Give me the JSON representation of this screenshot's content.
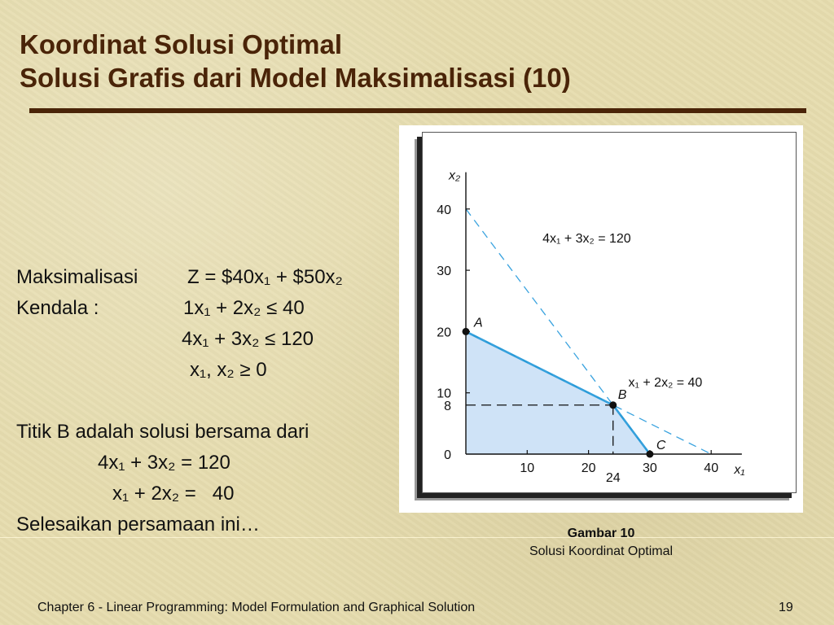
{
  "slide": {
    "title_line1": "Koordinat Solusi Optimal",
    "title_line2": "Solusi Grafis dari Model Maksimalisasi (10)"
  },
  "body": {
    "objective_label": "Maksimalisasi",
    "objective": "Z = $40x₁ + $50x₂",
    "constraint_label": "Kendala :",
    "constraints": [
      "1x₁ + 2x₂ ≤ 40",
      "4x₁ + 3x₂ ≤ 120",
      "x₁, x₂ ≥ 0"
    ],
    "statement": "Titik B adalah solusi bersama dari",
    "equations": [
      "4x₁ + 3x₂ = 120",
      "x₁ + 2x₂ =   40"
    ],
    "instruction": "Selesaikan persamaan ini…"
  },
  "caption": {
    "title": "Gambar 10",
    "subtitle": "Solusi Koordinat Optimal"
  },
  "footer": {
    "text": "Chapter 6 - Linear Programming:  Model Formulation and Graphical Solution",
    "page": "19"
  },
  "chart_data": {
    "type": "line",
    "xlabel": "x₁",
    "ylabel": "x₂",
    "xlim": [
      0,
      45
    ],
    "ylim": [
      0,
      46
    ],
    "x_ticks": [
      10,
      20,
      30,
      40
    ],
    "y_ticks": [
      0,
      10,
      20,
      30,
      40
    ],
    "extra_ticks": {
      "x": [
        24
      ],
      "y": [
        8
      ]
    },
    "grid": false,
    "constraint_lines": [
      {
        "name": "4x₁ + 3x₂ = 120",
        "points": [
          [
            0,
            40
          ],
          [
            30,
            0
          ]
        ]
      },
      {
        "name": "x₁ + 2x₂ = 40",
        "points": [
          [
            0,
            20
          ],
          [
            40,
            0
          ]
        ]
      }
    ],
    "feasible_region": [
      [
        0,
        0
      ],
      [
        0,
        20
      ],
      [
        24,
        8
      ],
      [
        30,
        0
      ]
    ],
    "points": [
      {
        "label": "A",
        "x": 0,
        "y": 20
      },
      {
        "label": "B",
        "x": 24,
        "y": 8
      },
      {
        "label": "C",
        "x": 30,
        "y": 0
      }
    ],
    "optimal_guides": {
      "x": 24,
      "y": 8
    },
    "colors": {
      "feasible_fill": "#cfe3f7",
      "feasible_edge": "#2a9bd8",
      "constraint_line": "#3aa3df",
      "guide": "#111111",
      "axis": "#111111"
    }
  }
}
